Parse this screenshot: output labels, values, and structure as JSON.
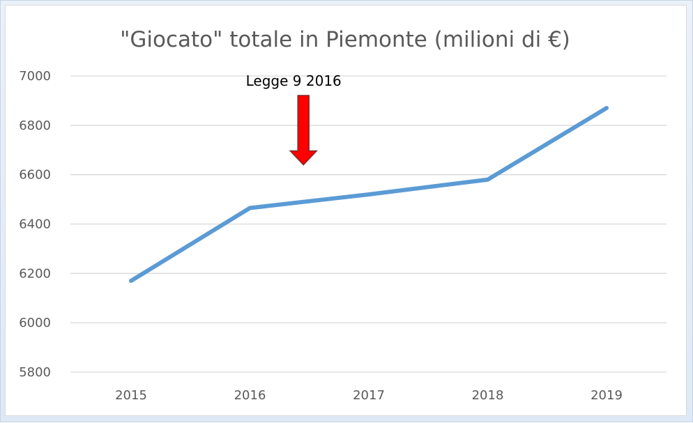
{
  "chart_data": {
    "type": "line",
    "title": "\"Giocato\" totale in Piemonte (milioni di €)",
    "xlabel": "",
    "ylabel": "",
    "categories": [
      "2015",
      "2016",
      "2017",
      "2018",
      "2019"
    ],
    "series": [
      {
        "values": [
          6170,
          6465,
          6520,
          6580,
          6870
        ],
        "color": "#5b9bd5"
      }
    ],
    "ylim": [
      5800,
      7000
    ],
    "yticks": [
      5800,
      6000,
      6200,
      6400,
      6600,
      6800,
      7000
    ],
    "grid": true,
    "legend": "none",
    "annotations": [
      {
        "text": "Legge 9 2016",
        "x": 2016.45,
        "arrow_color": "#ff0000",
        "arrow_tip_value": 6640
      }
    ]
  }
}
